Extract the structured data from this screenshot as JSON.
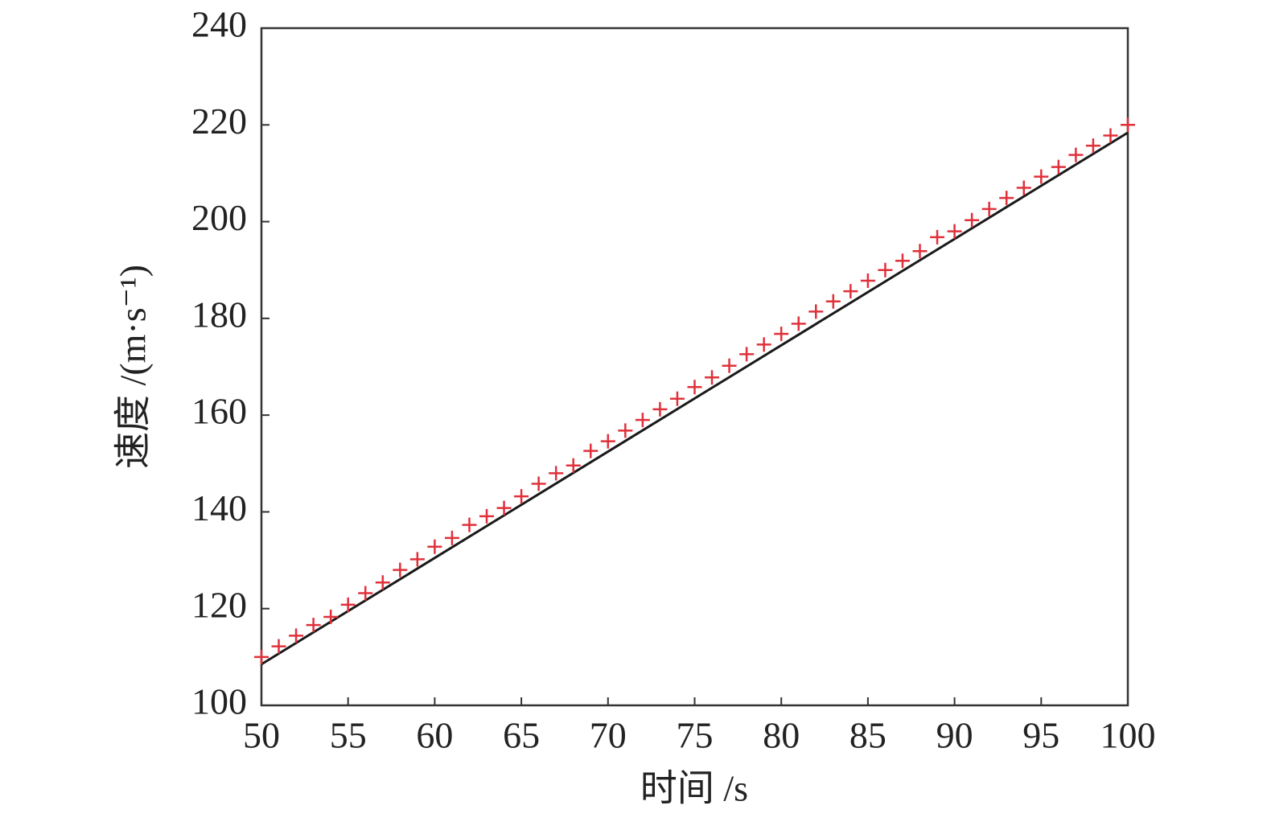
{
  "chart_data": {
    "type": "scatter",
    "xlabel": "时间 /s",
    "ylabel": "速度 /(m·s⁻¹)",
    "xlim": [
      50,
      100
    ],
    "xticks": [
      50,
      55,
      60,
      65,
      70,
      75,
      80,
      85,
      90,
      95,
      100
    ],
    "ylim": [
      100,
      240
    ],
    "yticks": [
      100,
      120,
      140,
      160,
      180,
      200,
      220,
      240
    ],
    "series": [
      {
        "mode": "line",
        "color": "#1a1a1a",
        "x": [
          50,
          100
        ],
        "values": [
          108.5,
          218.4
        ]
      },
      {
        "mode": "markers",
        "marker": "+",
        "color": "#e0303a",
        "x": [
          50,
          51,
          52,
          53,
          54,
          55,
          56,
          57,
          58,
          59,
          60,
          61,
          62,
          63,
          64,
          65,
          66,
          67,
          68,
          69,
          70,
          71,
          72,
          73,
          74,
          75,
          76,
          77,
          78,
          79,
          80,
          81,
          82,
          83,
          84,
          85,
          86,
          87,
          88,
          89,
          90,
          91,
          92,
          93,
          94,
          95,
          96,
          97,
          98,
          99,
          100
        ],
        "values": [
          110.0,
          112.2,
          114.4,
          116.6,
          118.3,
          120.8,
          123.2,
          125.4,
          128.0,
          130.2,
          132.8,
          134.6,
          137.3,
          139.1,
          140.8,
          143.2,
          145.8,
          148.0,
          149.6,
          152.6,
          154.6,
          156.8,
          159.0,
          161.2,
          163.4,
          165.8,
          167.8,
          170.2,
          172.6,
          174.6,
          176.8,
          178.9,
          181.4,
          183.5,
          185.6,
          187.8,
          190.0,
          191.9,
          193.9,
          196.8,
          198.0,
          200.3,
          202.6,
          204.9,
          207.0,
          209.3,
          211.3,
          213.8,
          215.7,
          217.8,
          220.0
        ]
      }
    ]
  }
}
